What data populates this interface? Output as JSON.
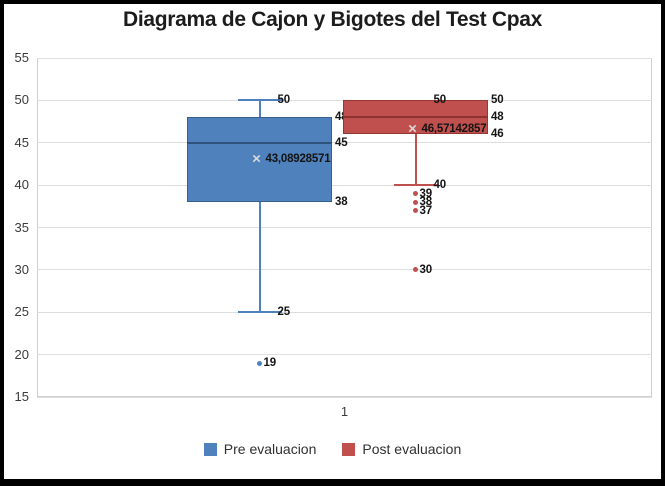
{
  "window": {
    "title": "Diagrama de Cajon y Bigotes del Test Cpax"
  },
  "chart_data": {
    "type": "boxplot",
    "title": "Diagrama de Cajon y Bigotes del Test Cpax",
    "x_categories": [
      "1"
    ],
    "y_axis": {
      "min": 15,
      "max": 55,
      "step": 5,
      "ticks": [
        "55",
        "50",
        "45",
        "40",
        "35",
        "30",
        "25",
        "20",
        "15"
      ]
    },
    "grid": true,
    "legend_position": "bottom",
    "mean_marker": "×",
    "legend": [
      {
        "label": "Pre evaluacion",
        "color": "#4F81BD"
      },
      {
        "label": "Post evaluacion",
        "color": "#C0504D"
      }
    ],
    "series": [
      {
        "name": "Pre evaluacion",
        "category": "1",
        "fill": "#4F81BD",
        "border": "#36618F",
        "median_color": "#2E537C",
        "whisker_high": 50,
        "q3": 48,
        "median": 45,
        "q1": 38,
        "whisker_low": 25,
        "mean": 43.08928571,
        "mean_label": "43,08928571",
        "outliers": [
          {
            "value": 19,
            "label": "19"
          }
        ],
        "labels": {
          "whisker_high": "50",
          "q3": "48",
          "median": "45",
          "q1": "38",
          "whisker_low": "25"
        }
      },
      {
        "name": "Post evaluacion",
        "category": "1",
        "fill": "#C0504D",
        "border": "#953735",
        "median_color": "#8C3230",
        "whisker_high": 50,
        "q3": 50,
        "median": 48,
        "q1": 46,
        "whisker_low": 40,
        "mean": 46.57142857,
        "mean_label": "46,57142857",
        "outliers": [
          {
            "value": 39,
            "label": "39"
          },
          {
            "value": 38,
            "label": "38"
          },
          {
            "value": 37,
            "label": "37"
          },
          {
            "value": 30,
            "label": "30"
          }
        ],
        "labels": {
          "whisker_high": "50",
          "q3": "50",
          "median": "48",
          "q1": "46",
          "whisker_low": "40"
        }
      }
    ]
  }
}
